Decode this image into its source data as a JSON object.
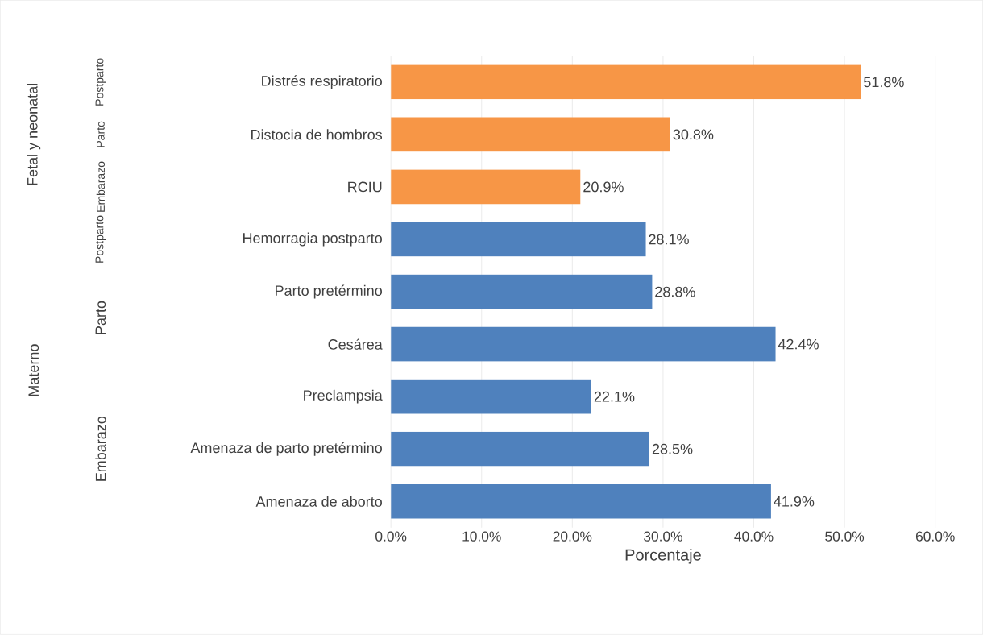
{
  "chart_data": {
    "type": "bar",
    "orientation": "horizontal",
    "categories": [
      "Distrés respiratorio",
      "Distocia de hombros",
      "RCIU",
      "Hemorragia postparto",
      "Parto pretérmino",
      "Cesárea",
      "Preclampsia",
      "Amenaza de parto pretérmino",
      "Amenaza de aborto"
    ],
    "values": [
      51.8,
      30.8,
      20.9,
      28.1,
      28.8,
      42.4,
      22.1,
      28.5,
      41.9
    ],
    "value_labels": [
      "51.8%",
      "30.8%",
      "20.9%",
      "28.1%",
      "28.8%",
      "42.4%",
      "22.1%",
      "28.5%",
      "41.9%"
    ],
    "colors": [
      "#f79646",
      "#f79646",
      "#f79646",
      "#4f81bd",
      "#4f81bd",
      "#4f81bd",
      "#4f81bd",
      "#4f81bd",
      "#4f81bd"
    ],
    "xlim": [
      0,
      60
    ],
    "xticks": [
      {
        "value": 0,
        "label": "0.0%"
      },
      {
        "value": 10,
        "label": "10.0%"
      },
      {
        "value": 20,
        "label": "20.0%"
      },
      {
        "value": 30,
        "label": "30.0%"
      },
      {
        "value": 40,
        "label": "40.0%"
      },
      {
        "value": 50,
        "label": "50.0%"
      },
      {
        "value": 60,
        "label": "60.0%"
      }
    ],
    "xlabel": "Porcentaje",
    "grid": "x",
    "annotations": [
      "Fetal y neonatal",
      "Materno",
      "Postparto",
      "Parto",
      "Embarazo",
      "Postparto",
      "Parto",
      "Embarazo"
    ]
  }
}
